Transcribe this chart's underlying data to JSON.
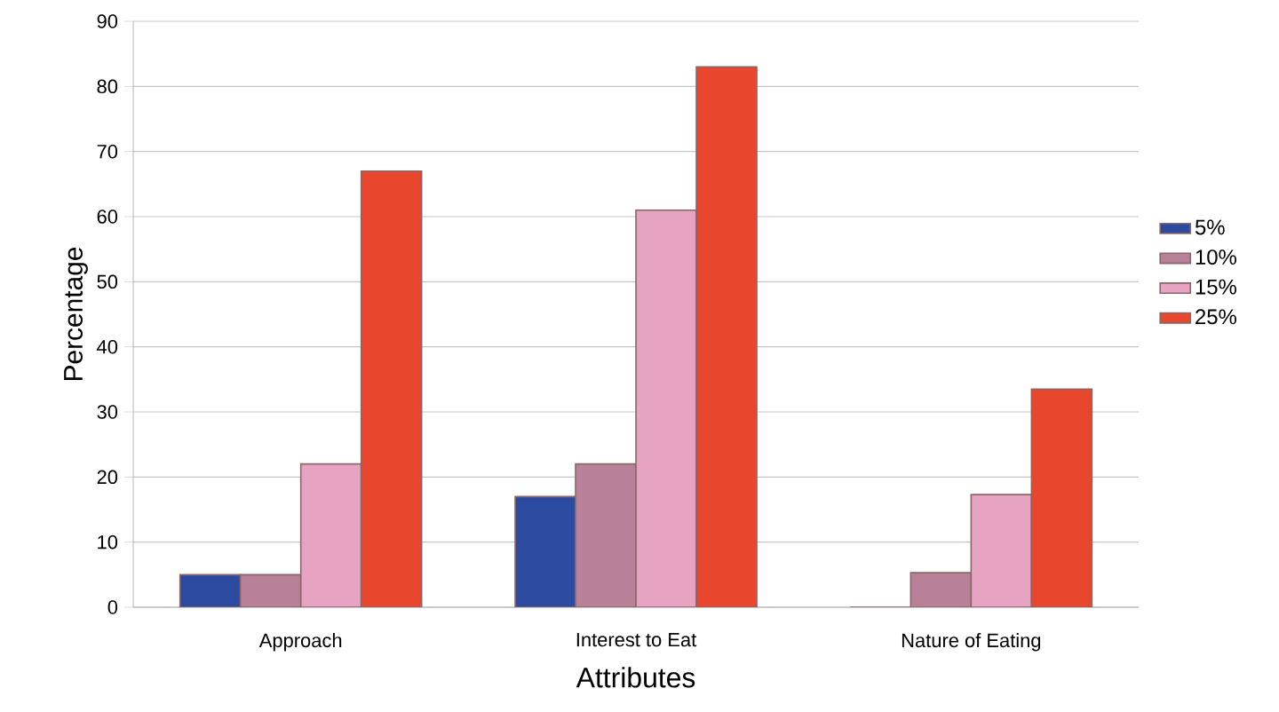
{
  "chart_data": {
    "type": "bar",
    "xlabel": "Attributes",
    "ylabel": "Percentage",
    "categories": [
      "Approach",
      "Interest to Eat",
      "Nature of Eating"
    ],
    "series": [
      {
        "name": "5%",
        "color": "#2b4aa0",
        "values": [
          5,
          17,
          0
        ]
      },
      {
        "name": "10%",
        "color": "#b9809a",
        "values": [
          5,
          22,
          5.3
        ]
      },
      {
        "name": "15%",
        "color": "#e7a3c2",
        "values": [
          22,
          61,
          17.3
        ]
      },
      {
        "name": "25%",
        "color": "#e8472e",
        "values": [
          67,
          83,
          33.5
        ]
      }
    ],
    "ylim": [
      0,
      90
    ],
    "yticks": [
      0,
      10,
      20,
      30,
      40,
      50,
      60,
      70,
      80,
      90
    ],
    "grid": "y",
    "legend": "right"
  }
}
